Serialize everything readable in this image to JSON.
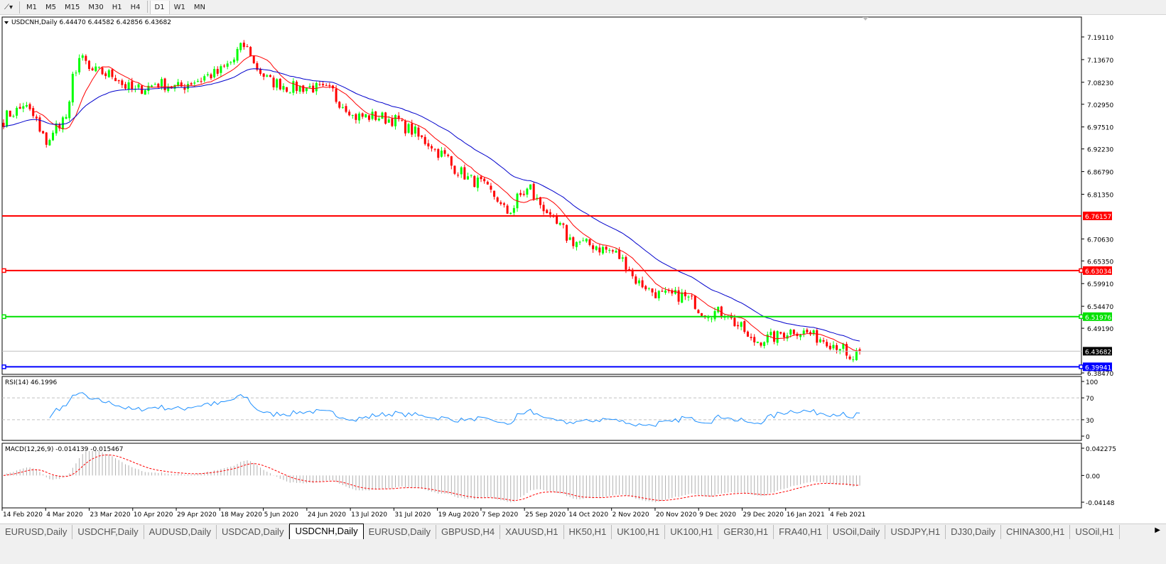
{
  "toolbar": {
    "timeframes": [
      "M1",
      "M5",
      "M15",
      "M30",
      "H1",
      "H4",
      "D1",
      "W1",
      "MN"
    ],
    "active": "D1"
  },
  "chart": {
    "symbol_header": "USDCNH,Daily  6.44470 6.44582 6.42856 6.43682",
    "price_ticks": [
      "7.19110",
      "7.13670",
      "7.08230",
      "7.02950",
      "6.97510",
      "6.92230",
      "6.86790",
      "6.81350",
      "6.70630",
      "6.65350",
      "6.59910",
      "6.54470",
      "6.49190",
      "6.38470"
    ],
    "levels": [
      {
        "price": "6.76157",
        "color": "#ff0000"
      },
      {
        "price": "6.63034",
        "color": "#ff0000"
      },
      {
        "price": "6.51976",
        "color": "#00e000"
      },
      {
        "price": "6.39941",
        "color": "#0000ff"
      }
    ],
    "current_price": "6.43682",
    "bull_color": "#00ff00",
    "bear_color": "#ff0000",
    "ma_fast_color": "#ff0000",
    "ma_slow_color": "#0000cc"
  },
  "rsi": {
    "header": "RSI(14) 46.1996",
    "ticks": [
      "100",
      "70",
      "30",
      "0"
    ],
    "color": "#1e90ff"
  },
  "macd": {
    "header": "MACD(12,26,9) -0.014139 -0.015467",
    "ticks": [
      "0.042275",
      "0.00",
      "-0.04148"
    ]
  },
  "date_labels": [
    "14 Feb 2020",
    "4 Mar 2020",
    "23 Mar 2020",
    "10 Apr 2020",
    "29 Apr 2020",
    "18 May 2020",
    "5 Jun 2020",
    "24 Jun 2020",
    "13 Jul 2020",
    "31 Jul 2020",
    "19 Aug 2020",
    "7 Sep 2020",
    "25 Sep 2020",
    "14 Oct 2020",
    "2 Nov 2020",
    "20 Nov 2020",
    "9 Dec 2020",
    "29 Dec 2020",
    "16 Jan 2021",
    "4 Feb 2021"
  ],
  "tabs": [
    "EURUSD,Daily",
    "USDCHF,Daily",
    "AUDUSD,Daily",
    "USDCAD,Daily",
    "USDCNH,Daily",
    "EURUSD,Daily",
    "GBPUSD,H4",
    "XAUUSD,H1",
    "HK50,H1",
    "UK100,H1",
    "UK100,H1",
    "GER30,H1",
    "FRA40,H1",
    "USOil,Daily",
    "USDJPY,H1",
    "DJ30,Daily",
    "CHINA300,H1",
    "USOil,H1"
  ],
  "active_tab": "USDCNH,Daily",
  "chart_data": {
    "type": "candlestick",
    "approx_closes": [
      [
        "14 Feb 2020",
        6.99
      ],
      [
        "24 Feb 2020",
        7.03
      ],
      [
        "4 Mar 2020",
        6.94
      ],
      [
        "12 Mar 2020",
        7.0
      ],
      [
        "18 Mar 2020",
        7.14
      ],
      [
        "23 Mar 2020",
        7.11
      ],
      [
        "1 Apr 2020",
        7.1
      ],
      [
        "10 Apr 2020",
        7.06
      ],
      [
        "20 Apr 2020",
        7.08
      ],
      [
        "29 Apr 2020",
        7.07
      ],
      [
        "8 May 2020",
        7.09
      ],
      [
        "18 May 2020",
        7.11
      ],
      [
        "27 May 2020",
        7.17
      ],
      [
        "5 Jun 2020",
        7.09
      ],
      [
        "15 Jun 2020",
        7.07
      ],
      [
        "24 Jun 2020",
        7.07
      ],
      [
        "3 Jul 2020",
        7.06
      ],
      [
        "13 Jul 2020",
        7.0
      ],
      [
        "22 Jul 2020",
        7.0
      ],
      [
        "31 Jul 2020",
        6.99
      ],
      [
        "10 Aug 2020",
        6.95
      ],
      [
        "19 Aug 2020",
        6.91
      ],
      [
        "28 Aug 2020",
        6.86
      ],
      [
        "7 Sep 2020",
        6.83
      ],
      [
        "16 Sep 2020",
        6.77
      ],
      [
        "25 Sep 2020",
        6.83
      ],
      [
        "5 Oct 2020",
        6.75
      ],
      [
        "14 Oct 2020",
        6.7
      ],
      [
        "23 Oct 2020",
        6.69
      ],
      [
        "2 Nov 2020",
        6.67
      ],
      [
        "11 Nov 2020",
        6.6
      ],
      [
        "20 Nov 2020",
        6.57
      ],
      [
        "30 Nov 2020",
        6.57
      ],
      [
        "9 Dec 2020",
        6.53
      ],
      [
        "18 Dec 2020",
        6.53
      ],
      [
        "29 Dec 2020",
        6.46
      ],
      [
        "7 Jan 2021",
        6.47
      ],
      [
        "16 Jan 2021",
        6.49
      ],
      [
        "26 Jan 2021",
        6.47
      ],
      [
        "4 Feb 2021",
        6.45
      ],
      [
        "9 Feb 2021",
        6.41
      ],
      [
        "12 Feb 2021",
        6.43682
      ]
    ],
    "ylim": [
      6.3847,
      7.1911
    ],
    "rsi_range": [
      0,
      100
    ],
    "macd_range": [
      -0.04148,
      0.042275
    ]
  }
}
